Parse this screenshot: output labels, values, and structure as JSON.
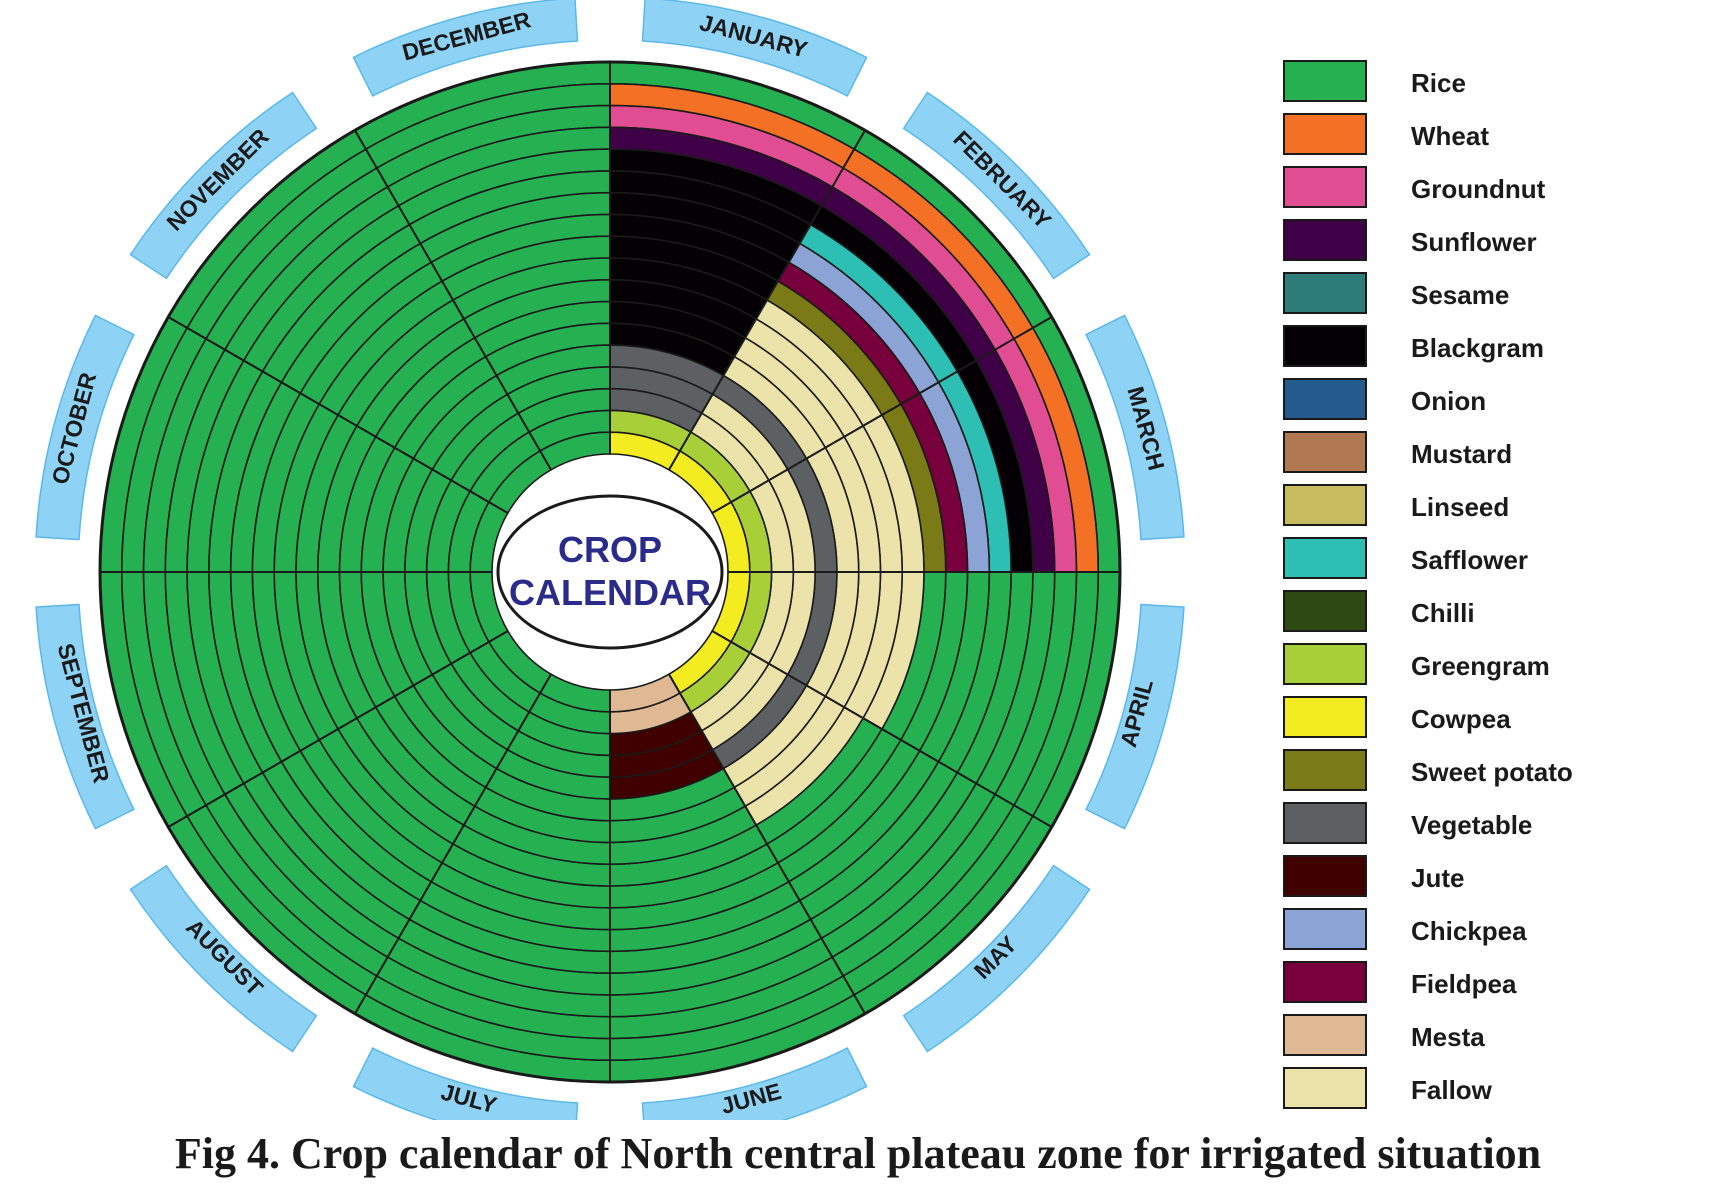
{
  "center": {
    "line1": "CROP",
    "line2": "CALENDAR"
  },
  "months": [
    "JANUARY",
    "FEBRUARY",
    "MARCH",
    "APRIL",
    "MAY",
    "JUNE",
    "JULY",
    "AUGUST",
    "SEPTEMBER",
    "OCTOBER",
    "NOVEMBER",
    "DECEMBER"
  ],
  "legend": [
    {
      "key": "R",
      "label": "Rice",
      "color": "#25b152"
    },
    {
      "key": "W",
      "label": "Wheat",
      "color": "#f37024"
    },
    {
      "key": "G",
      "label": "Groundnut",
      "color": "#e04d92"
    },
    {
      "key": "S",
      "label": "Sunflower",
      "color": "#400048"
    },
    {
      "key": "E",
      "label": "Sesame",
      "color": "#2e7c79"
    },
    {
      "key": "B",
      "label": "Blackgram",
      "color": "#040004"
    },
    {
      "key": "O",
      "label": "Onion",
      "color": "#245b8c"
    },
    {
      "key": "M",
      "label": "Mustard",
      "color": "#b07853"
    },
    {
      "key": "L",
      "label": "Linseed",
      "color": "#c8ba5e"
    },
    {
      "key": "F",
      "label": "Safflower",
      "color": "#2ebfb4"
    },
    {
      "key": "C",
      "label": "Chilli",
      "color": "#2e4a12"
    },
    {
      "key": "N",
      "label": "Greengram",
      "color": "#a8cf38"
    },
    {
      "key": "Y",
      "label": "Cowpea",
      "color": "#f3ec21"
    },
    {
      "key": "P",
      "label": "Sweet potato",
      "color": "#7a7a16"
    },
    {
      "key": "V",
      "label": "Vegetable",
      "color": "#5d6063"
    },
    {
      "key": "J",
      "label": "Jute",
      "color": "#400000"
    },
    {
      "key": "K",
      "label": "Chickpea",
      "color": "#8ba3d5"
    },
    {
      "key": "D",
      "label": "Fieldpea",
      "color": "#78003c"
    },
    {
      "key": "T",
      "label": "Mesta",
      "color": "#dfb894"
    },
    {
      "key": "A",
      "label": "Fallow",
      "color": "#ece3aa"
    }
  ],
  "rings_outer_to_inner": [
    "RRRRRRRRRRRR",
    "WWWRRRRRRRRR",
    "GGGRRRRRRRRR",
    "SSSRRRRRRRRR",
    "BBBRRRRRRRRR",
    "BFFRRRRRRRRR",
    "BKKRRRRRRRRR",
    "BDDRRRRRRRRR",
    "BPPRRRRRRRRR",
    "BAAARRRRRRRR",
    "BAAAARRRRRRR",
    "BAAAARRRRRRR",
    "BAAAARRRRRRR",
    "VVVVVJRRRRRR",
    "VAAAAJRRRRRR",
    "VAAAAJRRRRRR",
    "NNNNNTRRRRRR",
    "YYYYYTRRRRRR"
  ],
  "caption": "Fig 4. Crop calendar of North central plateau zone for irrigated situation"
}
